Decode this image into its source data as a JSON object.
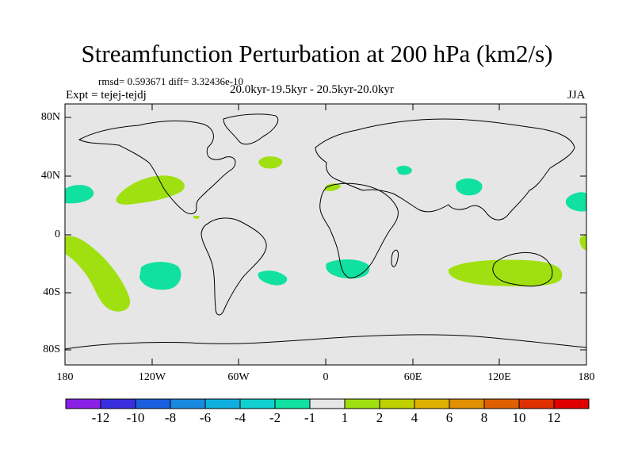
{
  "title": "Streamfunction Perturbation at 200 hPa (km2/s)",
  "stats": "rmsd= 0.593671 diff= 3.32436e-10",
  "period": "20.0kyr-19.5kyr - 20.5kyr-20.0kyr",
  "expt": "Expt = tejej-tejdj",
  "season": "JJA",
  "axes": {
    "lat_ticks": [
      "80N",
      "40N",
      "0",
      "40S",
      "80S"
    ],
    "lon_ticks": [
      "180",
      "120W",
      "60W",
      "0",
      "60E",
      "120E",
      "180"
    ]
  },
  "colorbar": {
    "labels": [
      "-12",
      "-10",
      "-8",
      "-6",
      "-4",
      "-2",
      "-1",
      "1",
      "2",
      "4",
      "6",
      "8",
      "10",
      "12"
    ],
    "colors": [
      "#8a1fe6",
      "#3a2fe0",
      "#1a5fe0",
      "#1a8ae0",
      "#0fb0e0",
      "#10d0d0",
      "#10e0a0",
      "#e6e6e6",
      "#a0e010",
      "#c0d000",
      "#e0b000",
      "#e09000",
      "#e06000",
      "#e03000",
      "#e00000"
    ]
  },
  "colors": {
    "background": "#e6e6e6",
    "neg_light": "#10e0a0",
    "pos_light": "#a0e010"
  }
}
